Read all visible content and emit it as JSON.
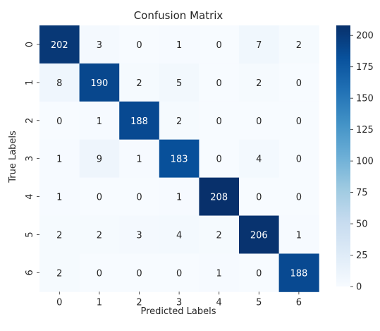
{
  "chart_data": {
    "type": "heatmap",
    "title": "Confusion Matrix",
    "xlabel": "Predicted Labels",
    "ylabel": "True Labels",
    "x_categories": [
      "0",
      "1",
      "2",
      "3",
      "4",
      "5",
      "6"
    ],
    "y_categories": [
      "0",
      "1",
      "2",
      "3",
      "4",
      "5",
      "6"
    ],
    "matrix": [
      [
        202,
        3,
        0,
        1,
        0,
        7,
        2
      ],
      [
        8,
        190,
        2,
        5,
        0,
        2,
        0
      ],
      [
        0,
        1,
        188,
        2,
        0,
        0,
        0
      ],
      [
        1,
        9,
        1,
        183,
        0,
        4,
        0
      ],
      [
        1,
        0,
        0,
        1,
        208,
        0,
        0
      ],
      [
        2,
        2,
        3,
        4,
        2,
        206,
        1
      ],
      [
        2,
        0,
        0,
        0,
        1,
        0,
        188
      ]
    ],
    "colormap": "Blues",
    "colorbar": {
      "min": 0,
      "max": 208,
      "ticks": [
        0,
        25,
        50,
        75,
        100,
        125,
        150,
        175,
        200
      ]
    },
    "annotations": true,
    "grid": false
  }
}
